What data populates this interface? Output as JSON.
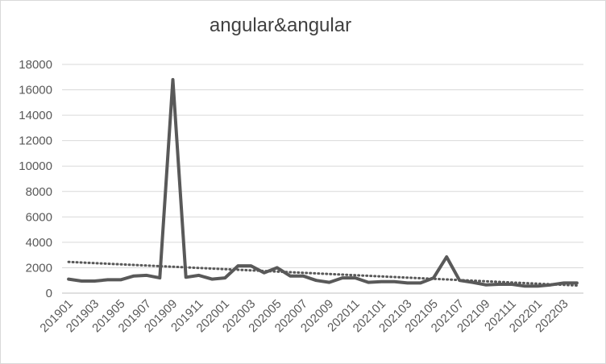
{
  "chart_data": {
    "type": "line",
    "title": "angular&angular",
    "xlabel": "",
    "ylabel": "",
    "ylim": [
      0,
      18000
    ],
    "y_ticks": [
      "0",
      "2000",
      "4000",
      "6000",
      "8000",
      "10000",
      "12000",
      "14000",
      "16000",
      "18000"
    ],
    "categories": [
      "201901",
      "201902",
      "201903",
      "201904",
      "201905",
      "201906",
      "201907",
      "201908",
      "201909",
      "201910",
      "201911",
      "201912",
      "202001",
      "202002",
      "202003",
      "202004",
      "202005",
      "202006",
      "202007",
      "202008",
      "202009",
      "202010",
      "202011",
      "202012",
      "202101",
      "202102",
      "202103",
      "202104",
      "202105",
      "202106",
      "202107",
      "202108",
      "202109",
      "202110",
      "202111",
      "202112",
      "202201",
      "202202",
      "202203",
      "202204"
    ],
    "x_tick_labels": [
      "201901",
      "201903",
      "201905",
      "201907",
      "201909",
      "201911",
      "202001",
      "202003",
      "202005",
      "202007",
      "202009",
      "202011",
      "202101",
      "202103",
      "202105",
      "202107",
      "202109",
      "202111",
      "202201",
      "202203"
    ],
    "series": [
      {
        "values": [
          1100,
          950,
          950,
          1050,
          1050,
          1350,
          1400,
          1200,
          16800,
          1250,
          1400,
          1100,
          1200,
          2150,
          2150,
          1600,
          2000,
          1350,
          1350,
          1000,
          850,
          1200,
          1200,
          850,
          900,
          900,
          800,
          800,
          1200,
          2850,
          1000,
          850,
          650,
          700,
          700,
          550,
          550,
          650,
          800,
          800
        ],
        "color": "#595959"
      }
    ],
    "trendline": {
      "type": "linear",
      "style": "dotted",
      "color": "#595959"
    },
    "grid": true,
    "legend": "none"
  }
}
